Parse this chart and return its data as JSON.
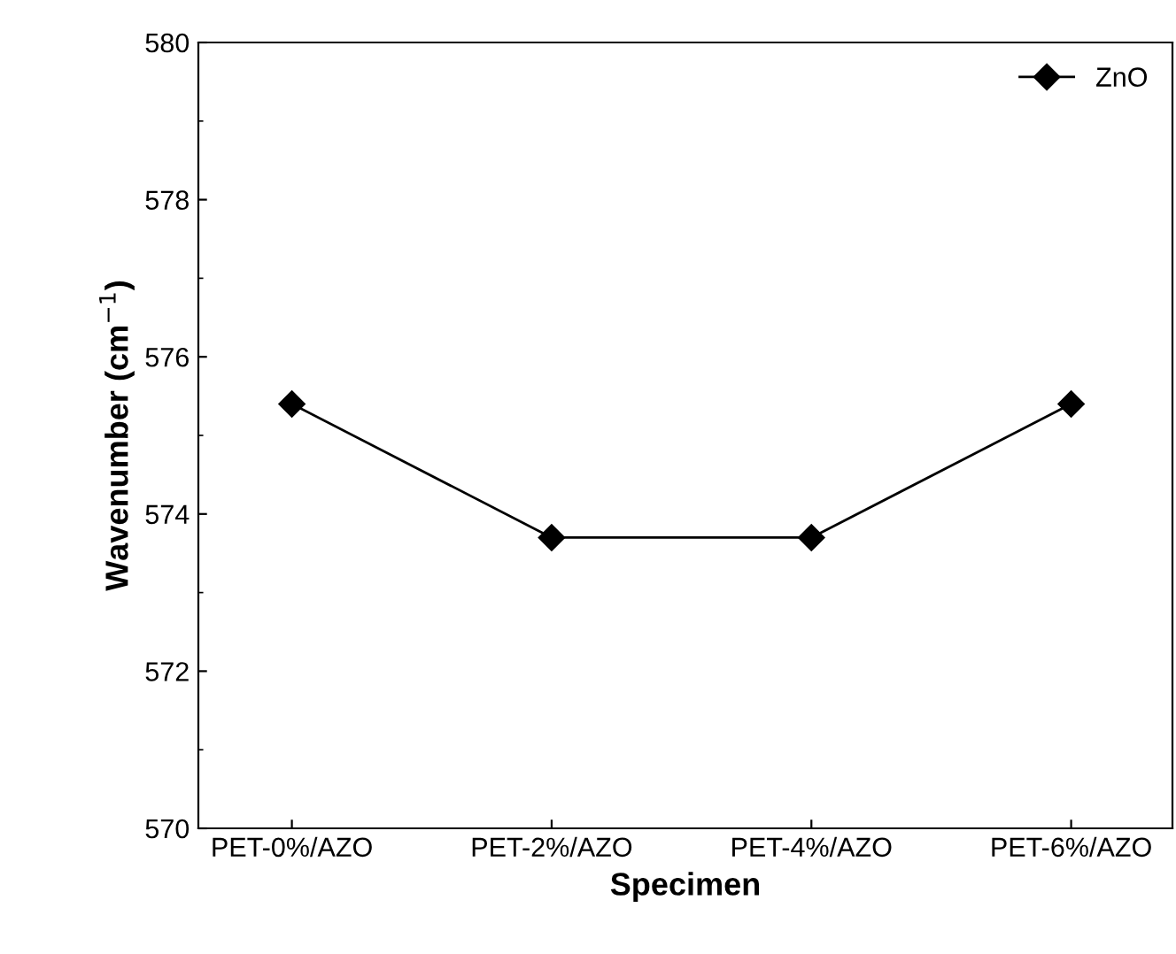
{
  "chart_data": {
    "type": "line",
    "xlabel": "Specimen",
    "ylabel": "Wavenumber (cm$^{−1}$)",
    "categories": [
      "PET-0%/AZO",
      "PET-2%/AZO",
      "PET-4%/AZO",
      "PET-6%/AZO"
    ],
    "series": [
      {
        "name": "ZnO",
        "color": "#000000",
        "values": [
          575.4,
          573.7,
          573.7,
          575.4
        ]
      }
    ],
    "ylim": [
      570,
      580
    ],
    "yticks": [
      570,
      572,
      574,
      576,
      578,
      580
    ],
    "marker": "diamond",
    "line_style": "solid",
    "legend": "top right",
    "grid": false
  }
}
